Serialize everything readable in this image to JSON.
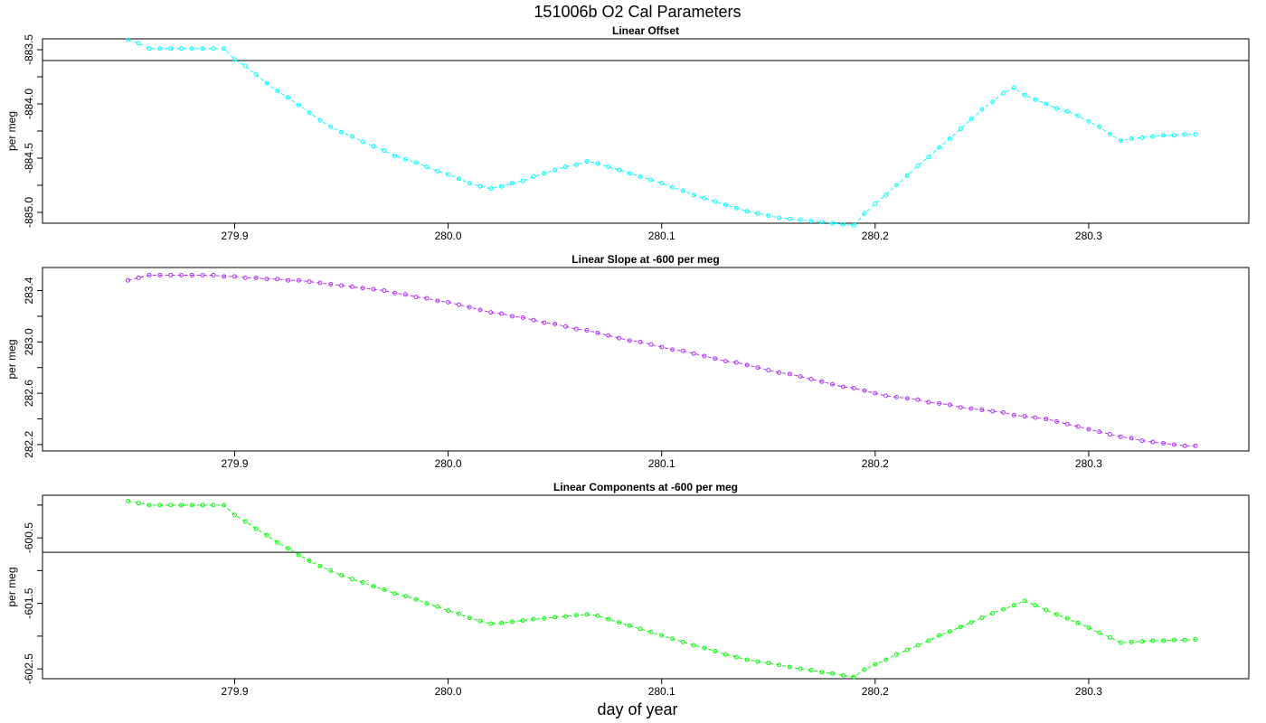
{
  "title": "151006b   O2 Cal Parameters",
  "chart_data": [
    {
      "type": "line",
      "title": "Linear Offset",
      "xlabel": "day of year",
      "ylabel": "per meg",
      "xlim": [
        279.81,
        280.375
      ],
      "ylim": [
        -885.1,
        -883.4
      ],
      "xticks": [
        279.9,
        280.0,
        280.1,
        280.2,
        280.3
      ],
      "yticks": [
        -885.0,
        -884.5,
        -884.0,
        -883.5
      ],
      "xtick_labels": [
        "279.9",
        "280.0",
        "280.1",
        "280.2",
        "280.3"
      ],
      "ytick_labels": [
        "-885.0",
        "-884.5",
        "-884.0",
        "-883.5"
      ],
      "color": "#00ffff",
      "hline": -883.6,
      "series": [
        {
          "x": [
            279.85,
            279.855,
            279.86,
            279.865,
            279.87,
            279.875,
            279.88,
            279.885,
            279.89,
            279.895,
            279.9,
            279.905,
            279.91,
            279.915,
            279.92,
            279.925,
            279.93,
            279.935,
            279.94,
            279.945,
            279.95,
            279.955,
            279.96,
            279.965,
            279.97,
            279.975,
            279.98,
            279.985,
            279.99,
            279.995,
            280.0,
            280.005,
            280.01,
            280.015,
            280.02,
            280.025,
            280.03,
            280.035,
            280.04,
            280.045,
            280.05,
            280.055,
            280.06,
            280.065,
            280.07,
            280.075,
            280.08,
            280.085,
            280.09,
            280.095,
            280.1,
            280.105,
            280.11,
            280.115,
            280.12,
            280.125,
            280.13,
            280.135,
            280.14,
            280.145,
            280.15,
            280.155,
            280.16,
            280.165,
            280.17,
            280.175,
            280.18,
            280.185,
            280.19,
            280.195,
            280.2,
            280.205,
            280.21,
            280.215,
            280.22,
            280.225,
            280.23,
            280.235,
            280.24,
            280.245,
            280.25,
            280.255,
            280.26,
            280.265,
            280.27,
            280.275,
            280.28,
            280.285,
            280.29,
            280.295,
            280.3,
            280.305,
            280.31,
            280.315,
            280.32,
            280.325,
            280.33,
            280.335,
            280.34,
            280.345,
            280.35
          ],
          "y": [
            -883.41,
            -883.44,
            -883.49,
            -883.49,
            -883.49,
            -883.49,
            -883.49,
            -883.49,
            -883.49,
            -883.49,
            -883.59,
            -883.65,
            -883.73,
            -883.81,
            -883.88,
            -883.94,
            -884.01,
            -884.08,
            -884.15,
            -884.21,
            -884.26,
            -884.3,
            -884.35,
            -884.39,
            -884.43,
            -884.48,
            -884.51,
            -884.54,
            -884.58,
            -884.62,
            -884.65,
            -884.69,
            -884.73,
            -884.76,
            -884.78,
            -884.76,
            -884.73,
            -884.71,
            -884.67,
            -884.64,
            -884.61,
            -884.58,
            -884.56,
            -884.53,
            -884.55,
            -884.58,
            -884.61,
            -884.64,
            -884.67,
            -884.7,
            -884.73,
            -884.77,
            -884.8,
            -884.84,
            -884.87,
            -884.9,
            -884.93,
            -884.96,
            -884.99,
            -885.01,
            -885.03,
            -885.05,
            -885.06,
            -885.07,
            -885.08,
            -885.09,
            -885.1,
            -885.11,
            -885.12,
            -885.01,
            -884.92,
            -884.84,
            -884.75,
            -884.66,
            -884.57,
            -884.49,
            -884.4,
            -884.32,
            -884.23,
            -884.14,
            -884.05,
            -883.98,
            -883.9,
            -883.85,
            -883.92,
            -883.96,
            -884.0,
            -884.04,
            -884.07,
            -884.11,
            -884.16,
            -884.21,
            -884.28,
            -884.34,
            -884.32,
            -884.31,
            -884.3,
            -884.29,
            -884.29,
            -884.28,
            -884.28
          ]
        }
      ]
    },
    {
      "type": "line",
      "title": "Linear Slope at -600 per meg",
      "xlabel": "day of year",
      "ylabel": "per meg",
      "xlim": [
        279.81,
        280.375
      ],
      "ylim": [
        282.15,
        283.58
      ],
      "xticks": [
        279.9,
        280.0,
        280.1,
        280.2,
        280.3
      ],
      "yticks": [
        282.2,
        282.6,
        283.0,
        283.4
      ],
      "xtick_labels": [
        "279.9",
        "280.0",
        "280.1",
        "280.2",
        "280.3"
      ],
      "ytick_labels": [
        "282.2",
        "282.6",
        "283.0",
        "283.4"
      ],
      "color": "#b030ff",
      "hline": null,
      "series": [
        {
          "x": [
            279.85,
            279.855,
            279.86,
            279.865,
            279.87,
            279.875,
            279.88,
            279.885,
            279.89,
            279.895,
            279.9,
            279.905,
            279.91,
            279.915,
            279.92,
            279.925,
            279.93,
            279.935,
            279.94,
            279.945,
            279.95,
            279.955,
            279.96,
            279.965,
            279.97,
            279.975,
            279.98,
            279.985,
            279.99,
            279.995,
            280.0,
            280.005,
            280.01,
            280.015,
            280.02,
            280.025,
            280.03,
            280.035,
            280.04,
            280.045,
            280.05,
            280.055,
            280.06,
            280.065,
            280.07,
            280.075,
            280.08,
            280.085,
            280.09,
            280.095,
            280.1,
            280.105,
            280.11,
            280.115,
            280.12,
            280.125,
            280.13,
            280.135,
            280.14,
            280.145,
            280.15,
            280.155,
            280.16,
            280.165,
            280.17,
            280.175,
            280.18,
            280.185,
            280.19,
            280.195,
            280.2,
            280.205,
            280.21,
            280.215,
            280.22,
            280.225,
            280.23,
            280.235,
            280.24,
            280.245,
            280.25,
            280.255,
            280.26,
            280.265,
            280.27,
            280.275,
            280.28,
            280.285,
            280.29,
            280.295,
            280.3,
            280.305,
            280.31,
            280.315,
            280.32,
            280.325,
            280.33,
            280.335,
            280.34,
            280.345,
            280.35
          ],
          "y": [
            283.48,
            283.5,
            283.52,
            283.52,
            283.52,
            283.52,
            283.52,
            283.52,
            283.52,
            283.51,
            283.51,
            283.5,
            283.5,
            283.49,
            283.49,
            283.48,
            283.48,
            283.47,
            283.46,
            283.45,
            283.44,
            283.43,
            283.42,
            283.41,
            283.4,
            283.38,
            283.37,
            283.35,
            283.34,
            283.32,
            283.31,
            283.29,
            283.27,
            283.25,
            283.23,
            283.22,
            283.2,
            283.19,
            283.17,
            283.15,
            283.14,
            283.12,
            283.1,
            283.09,
            283.07,
            283.05,
            283.03,
            283.01,
            283.0,
            282.98,
            282.96,
            282.94,
            282.93,
            282.91,
            282.89,
            282.87,
            282.85,
            282.84,
            282.82,
            282.8,
            282.78,
            282.76,
            282.75,
            282.73,
            282.71,
            282.69,
            282.67,
            282.65,
            282.64,
            282.62,
            282.6,
            282.58,
            282.57,
            282.56,
            282.55,
            282.53,
            282.52,
            282.51,
            282.49,
            282.48,
            282.47,
            282.46,
            282.45,
            282.43,
            282.42,
            282.41,
            282.4,
            282.38,
            282.36,
            282.34,
            282.32,
            282.3,
            282.28,
            282.26,
            282.25,
            282.23,
            282.22,
            282.21,
            282.2,
            282.19,
            282.19
          ]
        }
      ]
    },
    {
      "type": "line",
      "title": "Linear Components at -600 per meg",
      "xlabel": "day of year",
      "ylabel": "per meg",
      "xlim": [
        279.81,
        280.375
      ],
      "ylim": [
        -602.65,
        -599.85
      ],
      "xticks": [
        279.9,
        280.0,
        280.1,
        280.2,
        280.3
      ],
      "yticks": [
        -602.5,
        -601.5,
        -600.5
      ],
      "xtick_labels": [
        "279.9",
        "280.0",
        "280.1",
        "280.2",
        "280.3"
      ],
      "ytick_labels": [
        "-602.5",
        "-601.5",
        "-600.5"
      ],
      "color": "#00ff00",
      "hline": -600.72,
      "series": [
        {
          "x": [
            279.85,
            279.855,
            279.86,
            279.865,
            279.87,
            279.875,
            279.88,
            279.885,
            279.89,
            279.895,
            279.9,
            279.905,
            279.91,
            279.915,
            279.92,
            279.925,
            279.93,
            279.935,
            279.94,
            279.945,
            279.95,
            279.955,
            279.96,
            279.965,
            279.97,
            279.975,
            279.98,
            279.985,
            279.99,
            279.995,
            280.0,
            280.005,
            280.01,
            280.015,
            280.02,
            280.025,
            280.03,
            280.035,
            280.04,
            280.045,
            280.05,
            280.055,
            280.06,
            280.065,
            280.07,
            280.075,
            280.08,
            280.085,
            280.09,
            280.095,
            280.1,
            280.105,
            280.11,
            280.115,
            280.12,
            280.125,
            280.13,
            280.135,
            280.14,
            280.145,
            280.15,
            280.155,
            280.16,
            280.165,
            280.17,
            280.175,
            280.18,
            280.185,
            280.19,
            280.195,
            280.2,
            280.205,
            280.21,
            280.215,
            280.22,
            280.225,
            280.23,
            280.235,
            280.24,
            280.245,
            280.25,
            280.255,
            280.26,
            280.265,
            280.27,
            280.275,
            280.28,
            280.285,
            280.29,
            280.295,
            280.3,
            280.305,
            280.31,
            280.315,
            280.32,
            280.325,
            280.33,
            280.335,
            280.34,
            280.345,
            280.35
          ],
          "y": [
            -599.94,
            -599.97,
            -600.0,
            -600.0,
            -600.0,
            -600.0,
            -600.0,
            -600.0,
            -600.0,
            -600.0,
            -600.15,
            -600.25,
            -600.36,
            -600.46,
            -600.57,
            -600.66,
            -600.76,
            -600.85,
            -600.93,
            -601.0,
            -601.07,
            -601.13,
            -601.18,
            -601.24,
            -601.29,
            -601.35,
            -601.39,
            -601.44,
            -601.5,
            -601.55,
            -601.61,
            -601.66,
            -601.72,
            -601.77,
            -601.81,
            -601.8,
            -601.78,
            -601.76,
            -601.74,
            -601.73,
            -601.71,
            -601.7,
            -601.68,
            -601.67,
            -601.69,
            -601.74,
            -601.79,
            -601.84,
            -601.89,
            -601.94,
            -601.99,
            -602.04,
            -602.09,
            -602.14,
            -602.18,
            -602.23,
            -602.28,
            -602.32,
            -602.36,
            -602.39,
            -602.41,
            -602.44,
            -602.47,
            -602.5,
            -602.52,
            -602.55,
            -602.57,
            -602.6,
            -602.62,
            -602.51,
            -602.43,
            -602.36,
            -602.28,
            -602.21,
            -602.14,
            -602.07,
            -601.99,
            -601.93,
            -601.86,
            -601.79,
            -601.72,
            -601.65,
            -601.59,
            -601.53,
            -601.46,
            -601.53,
            -601.6,
            -601.67,
            -601.73,
            -601.8,
            -601.87,
            -601.95,
            -602.02,
            -602.1,
            -602.09,
            -602.08,
            -602.07,
            -602.07,
            -602.06,
            -602.06,
            -602.05
          ]
        }
      ]
    }
  ]
}
